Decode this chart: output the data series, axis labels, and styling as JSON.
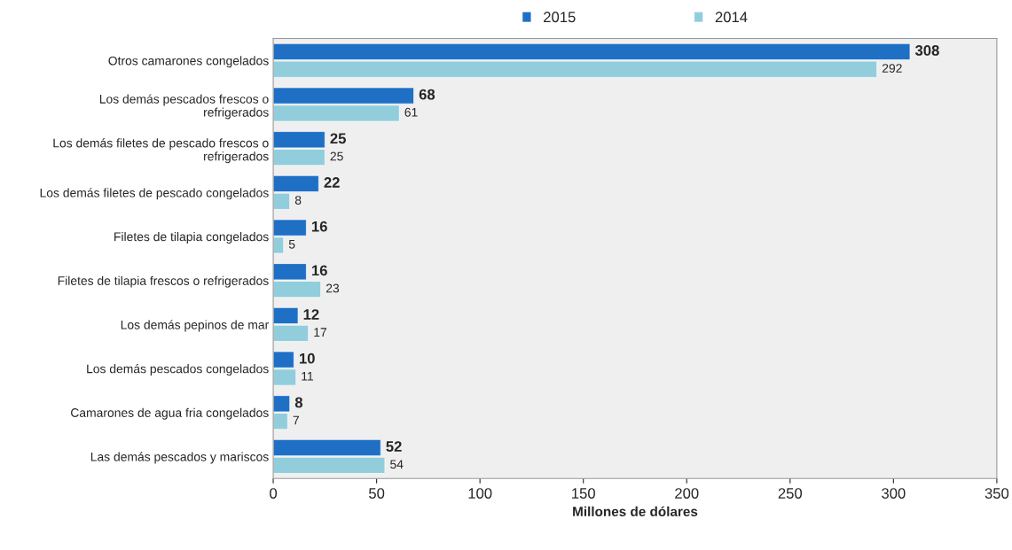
{
  "chart_data": {
    "type": "bar",
    "orientation": "horizontal",
    "categories": [
      "Otros camarones congelados",
      "Los demás pescados frescos o\nrefrigerados",
      "Los demás filetes de pescado frescos o\nrefrigerados",
      "Los demás filetes de pescado congelados",
      "Filetes de tilapia congelados",
      "Filetes de tilapia frescos o refrigerados",
      "Los demás pepinos de mar",
      "Los demás pescados congelados",
      "Camarones de agua fria congelados",
      "Las demás pescados y mariscos"
    ],
    "series": [
      {
        "name": "2015",
        "color": "#1f6fc5",
        "values": [
          308,
          68,
          25,
          22,
          16,
          16,
          12,
          10,
          8,
          52
        ]
      },
      {
        "name": "2014",
        "color": "#92cddc",
        "values": [
          292,
          61,
          25,
          8,
          5,
          23,
          17,
          11,
          7,
          54
        ]
      }
    ],
    "xlabel": "Millones de dólares",
    "xlim": [
      0,
      350
    ],
    "xticks": [
      0,
      50,
      100,
      150,
      200,
      250,
      300,
      350
    ],
    "data_labels": true,
    "legend": "top",
    "grid": false
  }
}
